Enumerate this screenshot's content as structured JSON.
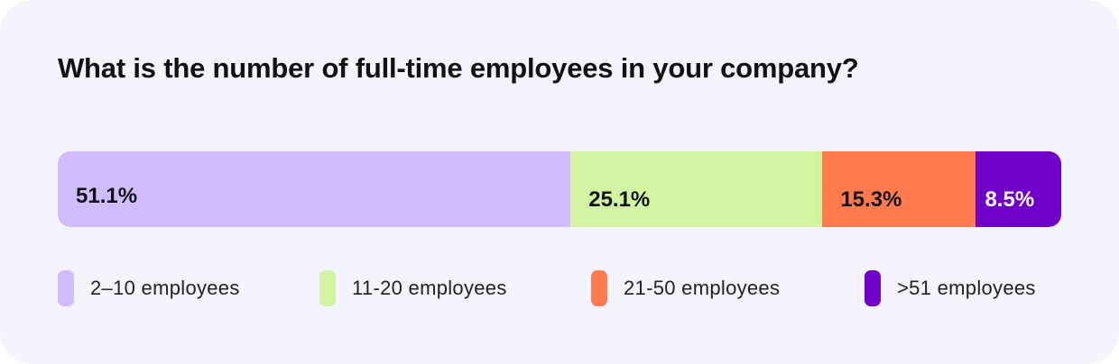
{
  "chart_data": {
    "type": "bar",
    "subtype": "stacked-horizontal-100",
    "title": "What is the number of full-time employees in your company?",
    "categories": [
      "2–10 employees",
      "11-20 employees",
      "21-50 employees",
      ">51 employees"
    ],
    "values": [
      51.1,
      25.1,
      15.3,
      8.5
    ],
    "labels": [
      "51.1%",
      "25.1%",
      "15.3%",
      "8.5%"
    ],
    "colors": [
      "#d0bcff",
      "#d3f5a3",
      "#ff7a4d",
      "#7000c8"
    ],
    "label_colors": [
      "#111111",
      "#111111",
      "#111111",
      "#ffffff"
    ],
    "legend_position": "bottom",
    "xlim": [
      0,
      100
    ]
  }
}
